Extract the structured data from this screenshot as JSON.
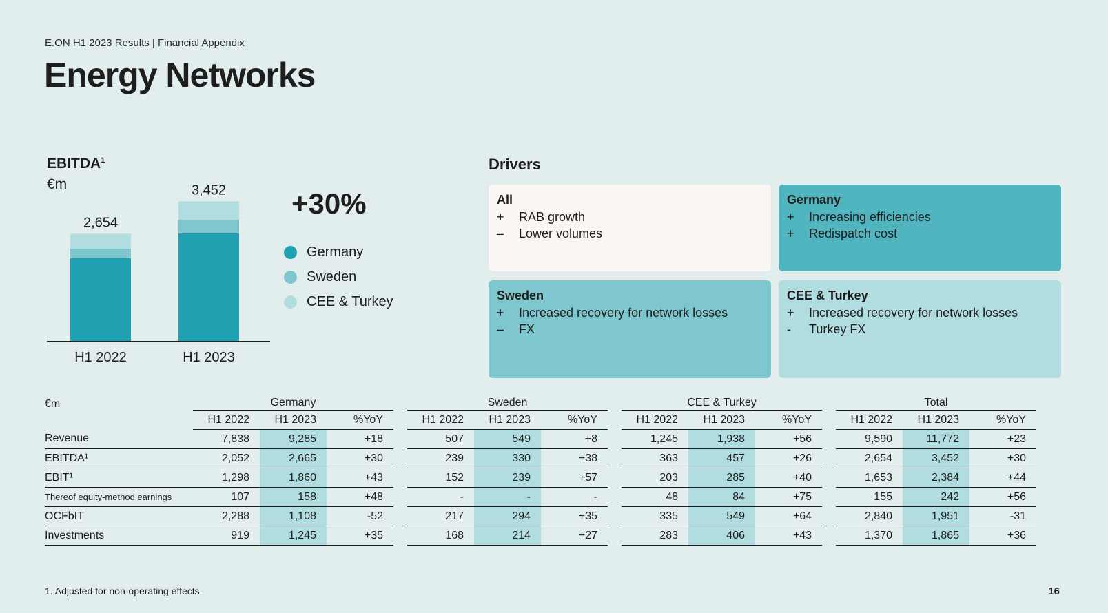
{
  "header": {
    "breadcrumb": "E.ON H1 2023 Results | Financial Appendix",
    "title": "Energy Networks"
  },
  "ebitda_chart": {
    "title": "EBITDA",
    "title_sup": "1",
    "unit": "€m",
    "growth_label": "+30%",
    "legend": [
      {
        "label": "Germany",
        "color": "#1fa1b1"
      },
      {
        "label": "Sweden",
        "color": "#7fc7ce"
      },
      {
        "label": "CEE & Turkey",
        "color": "#b1dce0"
      }
    ]
  },
  "chart_data": {
    "type": "bar",
    "stacked": true,
    "categories": [
      "H1 2022",
      "H1 2023"
    ],
    "series": [
      {
        "name": "Germany",
        "values": [
          2052,
          2665
        ],
        "color": "#1fa1b1"
      },
      {
        "name": "Sweden",
        "values": [
          239,
          330
        ],
        "color": "#7fc7ce"
      },
      {
        "name": "CEE & Turkey",
        "values": [
          363,
          457
        ],
        "color": "#b1dce0"
      }
    ],
    "totals": [
      "2,654",
      "3,452"
    ],
    "ylim": [
      0,
      3900
    ]
  },
  "drivers": {
    "title": "Drivers",
    "boxes": [
      {
        "heading": "All",
        "color": "#f9f6f3",
        "lines": [
          {
            "sign": "+",
            "text": "RAB growth"
          },
          {
            "sign": "–",
            "text": "Lower volumes"
          }
        ]
      },
      {
        "heading": "Germany",
        "color": "#51b5c0",
        "lines": [
          {
            "sign": "+",
            "text": "Increasing efficiencies"
          },
          {
            "sign": "+",
            "text": "Redispatch cost"
          }
        ]
      },
      {
        "heading": "Sweden",
        "color": "#7fc7ce",
        "lines": [
          {
            "sign": "+",
            "text": "Increased recovery for network losses"
          },
          {
            "sign": "–",
            "text": "FX"
          }
        ]
      },
      {
        "heading": "CEE & Turkey",
        "color": "#b1dce0",
        "lines": [
          {
            "sign": "+",
            "text": "Increased recovery for network losses"
          },
          {
            "sign": "-",
            "text": "Turkey FX"
          }
        ]
      }
    ]
  },
  "table": {
    "unit": "€m",
    "groups": [
      "Germany",
      "Sweden",
      "CEE & Turkey",
      "Total"
    ],
    "columns": [
      "H1 2022",
      "H1 2023",
      "%YoY"
    ],
    "rows": [
      {
        "label": "Revenue",
        "small": false,
        "values": [
          [
            "7,838",
            "9,285",
            "+18"
          ],
          [
            "507",
            "549",
            "+8"
          ],
          [
            "1,245",
            "1,938",
            "+56"
          ],
          [
            "9,590",
            "11,772",
            "+23"
          ]
        ]
      },
      {
        "label": "EBITDA¹",
        "small": false,
        "values": [
          [
            "2,052",
            "2,665",
            "+30"
          ],
          [
            "239",
            "330",
            "+38"
          ],
          [
            "363",
            "457",
            "+26"
          ],
          [
            "2,654",
            "3,452",
            "+30"
          ]
        ]
      },
      {
        "label": "EBIT¹",
        "small": false,
        "values": [
          [
            "1,298",
            "1,860",
            "+43"
          ],
          [
            "152",
            "239",
            "+57"
          ],
          [
            "203",
            "285",
            "+40"
          ],
          [
            "1,653",
            "2,384",
            "+44"
          ]
        ]
      },
      {
        "label": "Thereof equity-method earnings",
        "small": true,
        "values": [
          [
            "107",
            "158",
            "+48"
          ],
          [
            "-",
            "-",
            "-"
          ],
          [
            "48",
            "84",
            "+75"
          ],
          [
            "155",
            "242",
            "+56"
          ]
        ]
      },
      {
        "label": "OCFbIT",
        "small": false,
        "values": [
          [
            "2,288",
            "1,108",
            "-52"
          ],
          [
            "217",
            "294",
            "+35"
          ],
          [
            "335",
            "549",
            "+64"
          ],
          [
            "2,840",
            "1,951",
            "-31"
          ]
        ]
      },
      {
        "label": "Investments",
        "small": false,
        "values": [
          [
            "919",
            "1,245",
            "+35"
          ],
          [
            "168",
            "214",
            "+27"
          ],
          [
            "283",
            "406",
            "+43"
          ],
          [
            "1,370",
            "1,865",
            "+36"
          ]
        ]
      }
    ]
  },
  "footer": {
    "footnote": "1. Adjusted for non-operating effects",
    "page_number": "16"
  }
}
